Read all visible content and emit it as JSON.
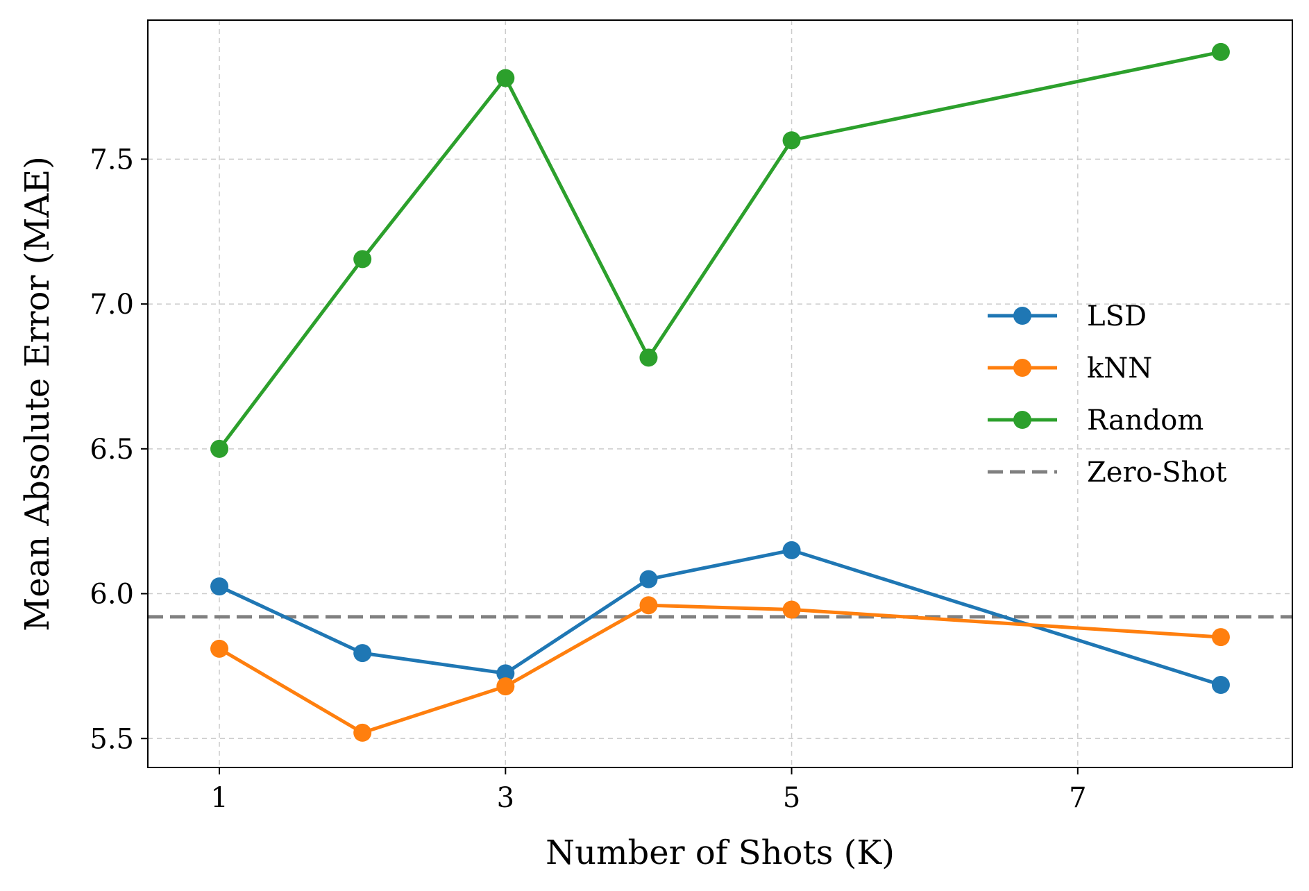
{
  "chart_data": {
    "type": "line",
    "title": "",
    "xlabel": "Number of Shots (K)",
    "ylabel": "Mean Absolute Error (MAE)",
    "xlim": [
      0.5,
      8.5
    ],
    "ylim": [
      5.4,
      7.98
    ],
    "xticks": [
      1,
      3,
      5,
      7
    ],
    "yticks": [
      5.5,
      6.0,
      6.5,
      7.0,
      7.5
    ],
    "ytick_labels": [
      "5.5",
      "6.0",
      "6.5",
      "7.0",
      "7.5"
    ],
    "grid": true,
    "legend_position": "center-right",
    "x": [
      1,
      2,
      3,
      4,
      5,
      8
    ],
    "series": [
      {
        "name": "LSD",
        "color": "#1f77b4",
        "values": [
          6.025,
          5.795,
          5.725,
          6.05,
          6.15,
          5.685
        ]
      },
      {
        "name": "kNN",
        "color": "#ff7f0e",
        "values": [
          5.81,
          5.52,
          5.68,
          5.96,
          5.945,
          5.85
        ]
      },
      {
        "name": "Random",
        "color": "#2ca02c",
        "values": [
          6.5,
          7.155,
          7.78,
          6.815,
          7.565,
          7.87
        ]
      }
    ],
    "reference_lines": [
      {
        "name": "Zero-Shot",
        "color": "#808080",
        "style": "dashed",
        "value": 5.92
      }
    ]
  }
}
